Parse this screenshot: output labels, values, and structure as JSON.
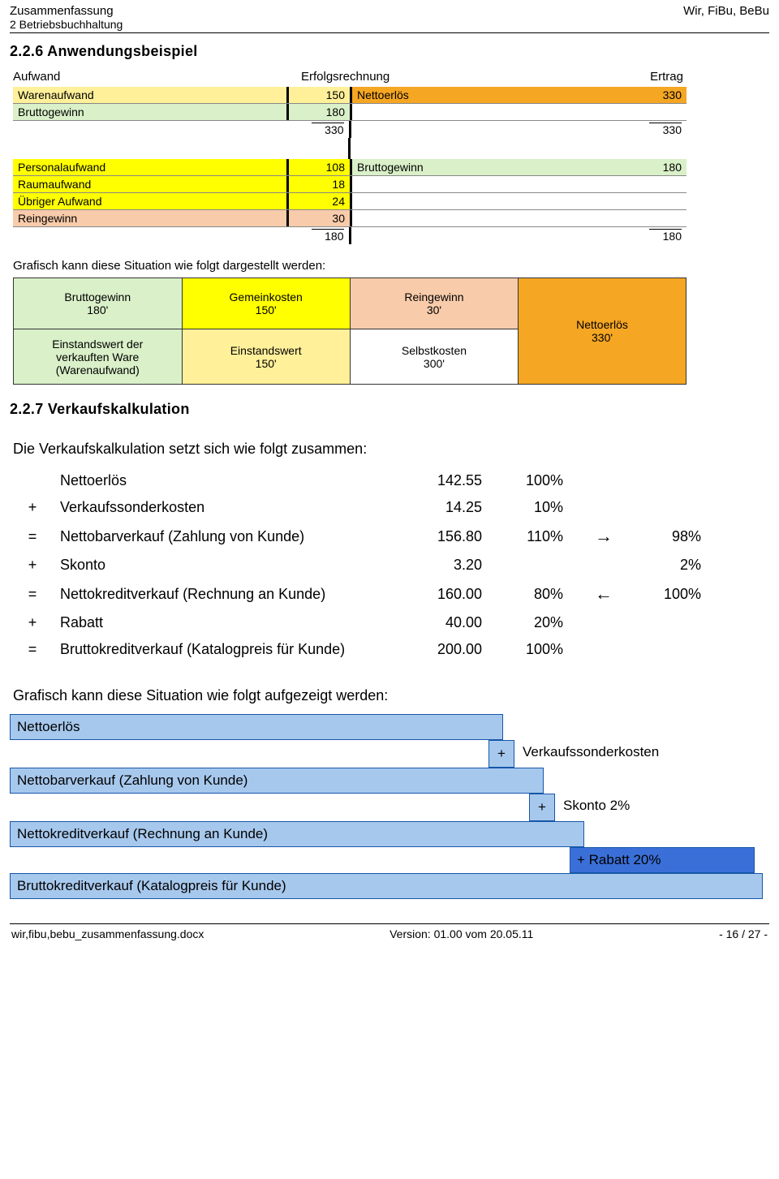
{
  "header": {
    "title_left1": "Zusammenfassung",
    "title_left2": "2 Betriebsbuchhaltung",
    "title_right": "Wir, FiBu, BeBu"
  },
  "section_226": "2.2.6   Anwendungsbeispiel",
  "erfolg": {
    "h_left": "Aufwand",
    "h_center": "Erfolgsrechnung",
    "h_right": "Ertrag",
    "block1": {
      "left": [
        {
          "label": "Warenaufwand",
          "val": "150",
          "color": "c-yellow-light"
        },
        {
          "label": "Bruttogewinn",
          "val": "180",
          "color": "c-green"
        }
      ],
      "right": [
        {
          "label": "Nettoerlös",
          "val": "330",
          "color": "c-orange"
        }
      ],
      "sum_l": "330",
      "sum_r": "330"
    },
    "block2": {
      "left": [
        {
          "label": "Personalaufwand",
          "val": "108",
          "color": "c-yellow"
        },
        {
          "label": "Raumaufwand",
          "val": "18",
          "color": "c-yellow"
        },
        {
          "label": "Übriger Aufwand",
          "val": "24",
          "color": "c-yellow"
        },
        {
          "label": "Reingewinn",
          "val": "30",
          "color": "c-orange-light"
        }
      ],
      "right": [
        {
          "label": "Bruttogewinn",
          "val": "180",
          "color": "c-green"
        }
      ],
      "sum_l": "180",
      "sum_r": "180"
    }
  },
  "graf_caption1": "Grafisch kann diese Situation wie folgt dargestellt werden:",
  "diag1": {
    "bruttogewinn": "Bruttogewinn\n180'",
    "einstandswert_ware": "Einstandswert der\nverkauften Ware\n(Warenaufwand)",
    "gemeinkosten": "Gemeinkosten\n150'",
    "einstandswert": "Einstandswert\n150'",
    "reingewinn": "Reingewinn\n30'",
    "selbstkosten": "Selbstkosten\n300'",
    "nettoerloes": "Nettoerlös\n330'"
  },
  "section_227": "2.2.7   Verkaufskalkulation",
  "calc_intro": "Die Verkaufskalkulation setzt sich wie folgt zusammen:",
  "calc": {
    "rows": [
      {
        "op": "",
        "label": "Nettoerlös",
        "val": "142.55",
        "pct": "100%",
        "arrow": "",
        "pct2": ""
      },
      {
        "op": "+",
        "label": "Verkaufssonderkosten",
        "val": "14.25",
        "pct": "10%",
        "arrow": "",
        "pct2": ""
      },
      {
        "op": "=",
        "label": "Nettobarverkauf (Zahlung von Kunde)",
        "val": "156.80",
        "pct": "110%",
        "arrow": "→",
        "pct2": "98%"
      },
      {
        "op": "+",
        "label": "Skonto",
        "val": "3.20",
        "pct": "",
        "arrow": "",
        "pct2": "2%"
      },
      {
        "op": "=",
        "label": "Nettokreditverkauf (Rechnung an Kunde)",
        "val": "160.00",
        "pct": "80%",
        "arrow": "←",
        "pct2": "100%"
      },
      {
        "op": "+",
        "label": "Rabatt",
        "val": "40.00",
        "pct": "20%",
        "arrow": "",
        "pct2": ""
      },
      {
        "op": "=",
        "label": "Bruttokreditverkauf (Katalogpreis für Kunde)",
        "val": "200.00",
        "pct": "100%",
        "arrow": "",
        "pct2": ""
      }
    ]
  },
  "graf_caption2": "Grafisch kann diese Situation wie folgt aufgezeigt werden:",
  "diag2": {
    "r1": "Nettoerlös",
    "r1_add": "Verkaufssonderkosten",
    "r2": "Nettobarverkauf (Zahlung von Kunde)",
    "r2_add": "Skonto 2%",
    "r3": "Nettokreditverkauf (Rechnung an Kunde)",
    "r3_add": "+ Rabatt 20%",
    "r4": "Bruttokreditverkauf (Katalogpreis für Kunde)"
  },
  "footer": {
    "file": "wir,fibu,bebu_zusammenfassung.docx",
    "version": "Version:  01.00  vom 20.05.11",
    "page": "- 16 / 27 -"
  },
  "colors": {
    "yellow_light": "#fff099",
    "green": "#d9f0c8",
    "orange": "#f5a623",
    "yellow": "#ffff00",
    "orange_light": "#f8cbaa",
    "lblue": "#a7c8ed",
    "dblue": "#3b6fd8"
  }
}
